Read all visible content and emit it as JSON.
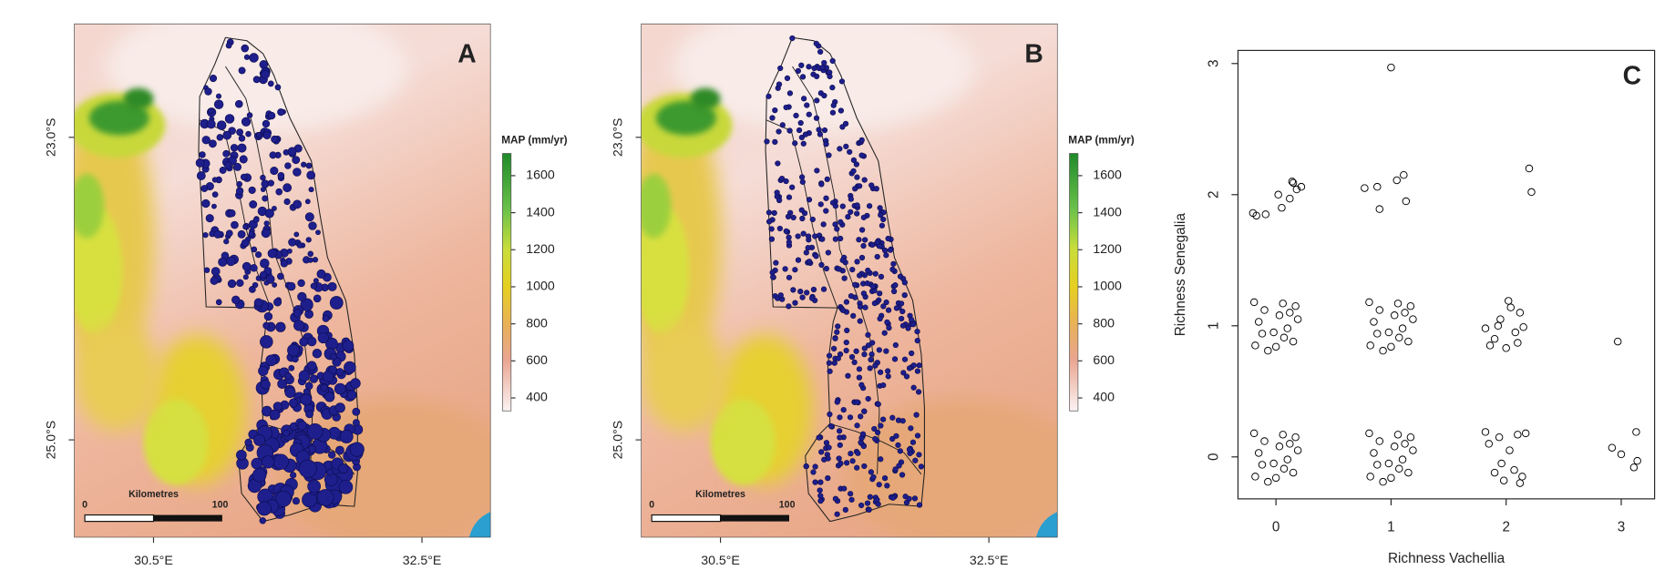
{
  "panels": [
    {
      "letter": "A",
      "lat_labels": [
        "23.0°S",
        "25.0°S"
      ],
      "lon_labels": [
        "30.5°E",
        "32.5°E"
      ],
      "legend": {
        "title": "MAP (mm/yr)",
        "lim": [
          330,
          1720
        ],
        "ticks": [
          400,
          600,
          800,
          1000,
          1200,
          1400,
          1600
        ]
      },
      "scale_bar": {
        "start": "0",
        "end": "100",
        "unit": "Kilometres"
      }
    },
    {
      "letter": "B",
      "lat_labels": [
        "23.0°S",
        "25.0°S"
      ],
      "lon_labels": [
        "30.5°E",
        "32.5°E"
      ],
      "legend": {
        "title": "MAP (mm/yr)",
        "lim": [
          330,
          1720
        ],
        "ticks": [
          400,
          600,
          800,
          1000,
          1200,
          1400,
          1600
        ]
      },
      "scale_bar": {
        "start": "0",
        "end": "100",
        "unit": "Kilometres"
      }
    }
  ],
  "chart_data": {
    "type": "scatter",
    "letter": "C",
    "x_label": "Richness Vachellia",
    "y_label": "Richness Senegalia",
    "xlim": [
      -0.33,
      3.29
    ],
    "ylim": [
      -0.32,
      3.1
    ],
    "xticks": [
      0,
      1,
      2,
      3
    ],
    "yticks": [
      0,
      1,
      2,
      3
    ],
    "color": "#000000",
    "x": [
      -0.18,
      -0.1,
      -0.02,
      0.06,
      0.15,
      0.19,
      -0.15,
      0.03,
      -0.07,
      0.1,
      0.17,
      -0.19,
      0,
      -0.12,
      0.12,
      0.07,
      0.82,
      0.9,
      0.98,
      1.06,
      1.15,
      1.19,
      0.85,
      1.03,
      0.93,
      1.1,
      1.17,
      0.81,
      1,
      0.88,
      1.12,
      1.07,
      -0.18,
      -0.1,
      -0.02,
      0.06,
      0.15,
      0.19,
      -0.15,
      0.03,
      -0.07,
      0.1,
      0.17,
      -0.19,
      0,
      -0.12,
      0.12,
      0.07,
      0.82,
      0.9,
      0.98,
      1.06,
      1.15,
      1.19,
      0.85,
      1.03,
      0.93,
      1.1,
      1.17,
      0.81,
      1,
      0.88,
      1.12,
      1.07,
      1.82,
      1.86,
      1.9,
      1.95,
      2.0,
      2.04,
      2.08,
      2.12,
      2.15,
      1.93,
      2.02,
      2.1,
      1.82,
      1.85,
      1.9,
      1.94,
      1.98,
      2.03,
      2.07,
      2.1,
      2.14,
      2.17,
      1.96,
      2.12,
      2.92,
      3.0,
      3.13,
      3.14,
      3.11,
      2.97,
      -0.2,
      -0.17,
      -0.09,
      0.05,
      0.12,
      0.18,
      0.22,
      0.14,
      0.15,
      0.02,
      0.77,
      0.88,
      1.05,
      1.11,
      0.9,
      1.13,
      1.0,
      2.2,
      2.22
    ],
    "values": [
      -0.15,
      0.12,
      -0.05,
      0.17,
      -0.12,
      0.05,
      0.03,
      0.08,
      -0.19,
      -0.02,
      0.15,
      0.18,
      -0.16,
      -0.06,
      0.1,
      -0.09,
      -0.15,
      0.12,
      -0.05,
      0.17,
      -0.12,
      0.05,
      0.03,
      0.08,
      -0.19,
      -0.02,
      0.15,
      0.18,
      -0.16,
      -0.06,
      0.1,
      -0.09,
      0.85,
      1.12,
      0.95,
      1.17,
      0.88,
      1.05,
      1.03,
      1.08,
      0.81,
      0.98,
      1.15,
      1.18,
      0.84,
      0.94,
      1.1,
      0.91,
      0.85,
      1.12,
      0.95,
      1.17,
      0.88,
      1.05,
      1.03,
      1.08,
      0.81,
      0.98,
      1.15,
      1.18,
      0.84,
      0.94,
      1.1,
      0.91,
      0.98,
      0.85,
      0.9,
      1.05,
      0.83,
      1.14,
      0.95,
      1.1,
      0.99,
      1.0,
      1.19,
      0.87,
      0.19,
      0.1,
      -0.12,
      0.15,
      -0.18,
      0.05,
      -0.1,
      0.17,
      -0.15,
      0.18,
      -0.05,
      -0.2,
      0.07,
      0.02,
      0.19,
      -0.03,
      -0.08,
      0.88,
      1.86,
      1.84,
      1.85,
      1.9,
      1.97,
      2.04,
      2.06,
      2.1,
      2.09,
      2.0,
      2.05,
      2.06,
      2.11,
      2.15,
      1.89,
      1.95,
      2.97,
      2.2,
      2.02
    ]
  }
}
